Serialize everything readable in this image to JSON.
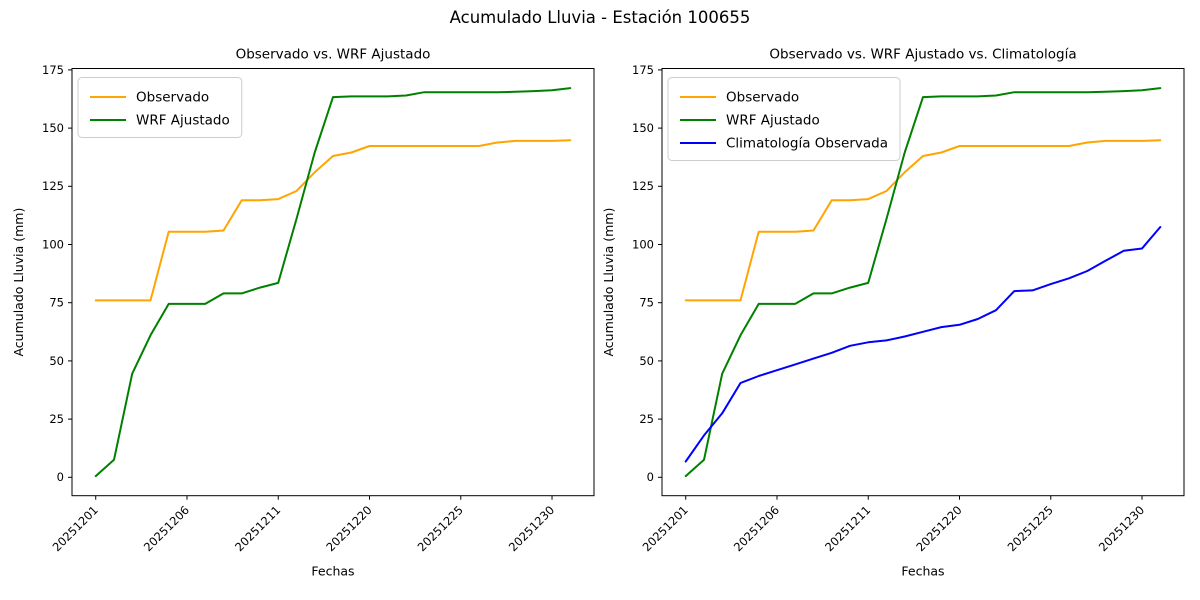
{
  "figure": {
    "suptitle": "Acumulado Lluvia - Estación 100655"
  },
  "colors": {
    "observado": "#FFA500",
    "wrf_ajustado": "#008000",
    "climatologia": "#0000FF",
    "text": "#000000",
    "spine": "#000000",
    "legend_border": "#CCCCCC",
    "background": "#FFFFFF"
  },
  "series_values": {
    "observado": [
      76,
      76,
      76,
      76,
      105.5,
      105.5,
      105.5,
      106,
      119,
      119,
      119.5,
      123,
      131,
      138,
      139.5,
      142.3,
      142.3,
      142.3,
      142.3,
      142.3,
      142.3,
      142.3,
      143.8,
      144.5,
      144.5,
      144.5,
      144.8
    ],
    "wrf_ajustado": [
      0.5,
      7.5,
      44.5,
      61,
      74.5,
      74.5,
      74.5,
      79,
      79,
      81.5,
      83.5,
      111,
      139.5,
      163.3,
      163.6,
      163.6,
      163.6,
      164,
      165.4,
      165.4,
      165.4,
      165.4,
      165.4,
      165.6,
      165.9,
      166.3,
      167.2
    ],
    "climatologia": [
      6.8,
      18,
      27.5,
      40.5,
      43.5,
      46,
      48.5,
      51,
      53.5,
      56.5,
      58,
      58.8,
      60.5,
      62.5,
      64.5,
      65.5,
      68,
      71.8,
      80,
      80.3,
      83,
      85.5,
      88.6,
      93,
      97.3,
      98.3,
      107.5
    ]
  },
  "chart_data": [
    {
      "type": "line",
      "title": "Observado vs. WRF Ajustado",
      "xlabel": "Fechas",
      "ylabel": "Acumulado Lluvia (mm)",
      "yticks": [
        0,
        25,
        50,
        75,
        100,
        125,
        150,
        175
      ],
      "ylim": [
        -7.9,
        175.6
      ],
      "xlim": [
        -1.3,
        27.3
      ],
      "n_points": 27,
      "grid": false,
      "legend_position": "upper-left",
      "x_ticks": [
        {
          "index": 0,
          "label": "20251201"
        },
        {
          "index": 5,
          "label": "20251206"
        },
        {
          "index": 10,
          "label": "20251211"
        },
        {
          "index": 15,
          "label": "20251220"
        },
        {
          "index": 20,
          "label": "20251225"
        },
        {
          "index": 25,
          "label": "20251230"
        }
      ],
      "series": [
        {
          "name": "Observado",
          "color_key": "observado"
        },
        {
          "name": "WRF Ajustado",
          "color_key": "wrf_ajustado"
        }
      ]
    },
    {
      "type": "line",
      "title": "Observado vs. WRF Ajustado vs. Climatología",
      "xlabel": "Fechas",
      "ylabel": "Acumulado Lluvia (mm)",
      "yticks": [
        0,
        25,
        50,
        75,
        100,
        125,
        150,
        175
      ],
      "ylim": [
        -7.9,
        175.6
      ],
      "xlim": [
        -1.3,
        27.3
      ],
      "n_points": 27,
      "grid": false,
      "legend_position": "upper-left",
      "x_ticks": [
        {
          "index": 0,
          "label": "20251201"
        },
        {
          "index": 5,
          "label": "20251206"
        },
        {
          "index": 10,
          "label": "20251211"
        },
        {
          "index": 15,
          "label": "20251220"
        },
        {
          "index": 20,
          "label": "20251225"
        },
        {
          "index": 25,
          "label": "20251230"
        }
      ],
      "series": [
        {
          "name": "Observado",
          "color_key": "observado"
        },
        {
          "name": "WRF Ajustado",
          "color_key": "wrf_ajustado"
        },
        {
          "name": "Climatología Observada",
          "color_key": "climatologia"
        }
      ]
    }
  ]
}
